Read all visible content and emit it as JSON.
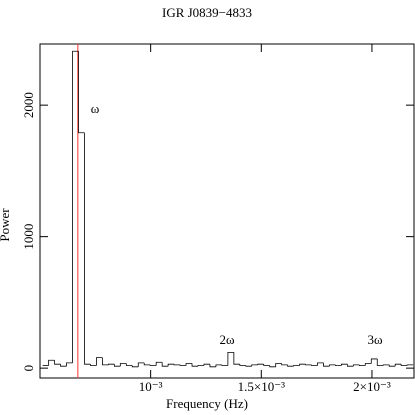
{
  "chart_data": {
    "type": "histogram",
    "title": "IGR J0839−4833",
    "x_label": "Frequency (Hz)",
    "y_label": "Power",
    "color": "#000000",
    "bins": [
      0.000512,
      0.000539,
      0.000566,
      0.000593,
      0.00062,
      0.000647,
      0.000674,
      0.000701,
      0.000728,
      0.000755,
      0.000782,
      0.000809,
      0.000836,
      0.000863,
      0.00089,
      0.000917,
      0.000944,
      0.000971,
      0.000998,
      0.001025,
      0.001052,
      0.001079,
      0.001106,
      0.001133,
      0.00116,
      0.001187,
      0.001214,
      0.001241,
      0.001268,
      0.001295,
      0.001322,
      0.001349,
      0.001376,
      0.001403,
      0.00143,
      0.001457,
      0.001484,
      0.001511,
      0.001538,
      0.001565,
      0.001592,
      0.001619,
      0.001646,
      0.001673,
      0.0017,
      0.001727,
      0.001754,
      0.001781,
      0.001808,
      0.001835,
      0.001862,
      0.001889,
      0.001916,
      0.001943,
      0.00197,
      0.001997,
      0.002024,
      0.002051,
      0.002078,
      0.002105,
      0.002132,
      0.002159,
      0.002186
    ],
    "values": [
      20,
      60,
      30,
      15,
      40,
      2410,
      1790,
      30,
      20,
      80,
      25,
      30,
      15,
      35,
      20,
      10,
      40,
      25,
      20,
      45,
      15,
      30,
      25,
      20,
      35,
      15,
      20,
      30,
      10,
      25,
      20,
      120,
      30,
      20,
      15,
      25,
      30,
      20,
      10,
      35,
      25,
      15,
      20,
      30,
      25,
      20,
      40,
      15,
      25,
      20,
      30,
      15,
      25,
      20,
      35,
      70,
      20,
      25,
      15,
      30,
      20,
      25
    ],
    "xlim": [
      0.0005,
      0.00219
    ],
    "ylim": [
      -75,
      2465
    ],
    "xticks": [
      {
        "value": 0.001,
        "label": "10⁻³"
      },
      {
        "value": 0.0015,
        "label": "1.5×10⁻³"
      },
      {
        "value": 0.002,
        "label": "2×10⁻³"
      }
    ],
    "yticks": [
      0,
      1000,
      2000
    ],
    "marker_line": {
      "x": 0.000671,
      "color": "#ff3333"
    },
    "annotations": [
      "ω",
      "2ω",
      "3ω"
    ],
    "annotation_color": "#ee0000"
  }
}
